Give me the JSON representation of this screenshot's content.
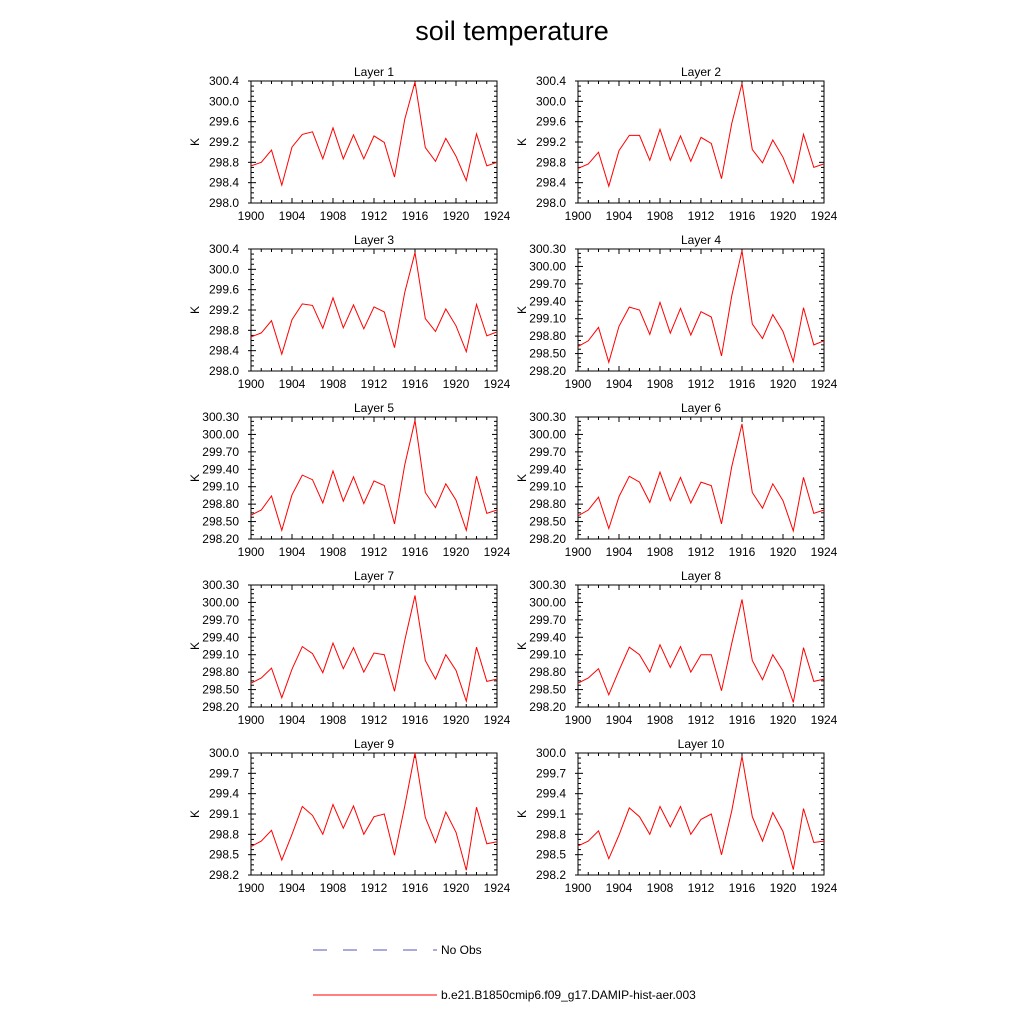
{
  "title": "soil temperature",
  "colors": {
    "model": "#ff0000",
    "obs": "#5555bb",
    "frame": "#000000"
  },
  "legend": [
    {
      "label": "No Obs",
      "style": "dashed",
      "color": "#5555bb"
    },
    {
      "label": "b.e21.B1850cmip6.f09_g17.DAMIP-hist-aer.003",
      "style": "solid",
      "color": "#ff0000"
    }
  ],
  "chart_data": [
    {
      "type": "line",
      "title": "Layer 1",
      "xlabel": "",
      "ylabel": "K",
      "xlim": [
        1900,
        1924
      ],
      "ylim": [
        298.0,
        300.4
      ],
      "xticks": [
        "1900",
        "1904",
        "1908",
        "1912",
        "1916",
        "1920",
        "1924"
      ],
      "yticks": [
        "298.0",
        "298.4",
        "298.8",
        "299.2",
        "299.6",
        "300.0",
        "300.4"
      ],
      "x": [
        1900,
        1901,
        1902,
        1903,
        1904,
        1905,
        1906,
        1907,
        1908,
        1909,
        1910,
        1911,
        1912,
        1913,
        1914,
        1915,
        1916,
        1917,
        1918,
        1919,
        1920,
        1921,
        1922,
        1923,
        1924
      ],
      "series": [
        {
          "name": "b.e21.B1850cmip6.f09_g17.DAMIP-hist-aer.003",
          "values": [
            298.73,
            298.8,
            299.04,
            298.35,
            299.1,
            299.35,
            299.4,
            298.87,
            299.48,
            298.87,
            299.34,
            298.87,
            299.32,
            299.19,
            298.51,
            299.65,
            300.38,
            299.09,
            298.82,
            299.27,
            298.92,
            298.44,
            299.36,
            298.73,
            298.8
          ]
        }
      ]
    },
    {
      "type": "line",
      "title": "Layer 2",
      "xlabel": "",
      "ylabel": "K",
      "xlim": [
        1900,
        1924
      ],
      "ylim": [
        298.0,
        300.4
      ],
      "xticks": [
        "1900",
        "1904",
        "1908",
        "1912",
        "1916",
        "1920",
        "1924"
      ],
      "yticks": [
        "298.0",
        "298.4",
        "298.8",
        "299.2",
        "299.6",
        "300.0",
        "300.4"
      ],
      "x": [
        1900,
        1901,
        1902,
        1903,
        1904,
        1905,
        1906,
        1907,
        1908,
        1909,
        1910,
        1911,
        1912,
        1913,
        1914,
        1915,
        1916,
        1917,
        1918,
        1919,
        1920,
        1921,
        1922,
        1923,
        1924
      ],
      "series": [
        {
          "name": "b.e21.B1850cmip6.f09_g17.DAMIP-hist-aer.003",
          "values": [
            298.68,
            298.77,
            299.0,
            298.33,
            299.03,
            299.33,
            299.33,
            298.84,
            299.45,
            298.84,
            299.32,
            298.82,
            299.29,
            299.17,
            298.48,
            299.57,
            300.35,
            299.05,
            298.79,
            299.24,
            298.9,
            298.4,
            299.35,
            298.7,
            298.77
          ]
        }
      ]
    },
    {
      "type": "line",
      "title": "Layer 3",
      "xlabel": "",
      "ylabel": "K",
      "xlim": [
        1900,
        1924
      ],
      "ylim": [
        298.0,
        300.4
      ],
      "xticks": [
        "1900",
        "1904",
        "1908",
        "1912",
        "1916",
        "1920",
        "1924"
      ],
      "yticks": [
        "298.0",
        "298.4",
        "298.8",
        "299.2",
        "299.6",
        "300.0",
        "300.4"
      ],
      "x": [
        1900,
        1901,
        1902,
        1903,
        1904,
        1905,
        1906,
        1907,
        1908,
        1909,
        1910,
        1911,
        1912,
        1913,
        1914,
        1915,
        1916,
        1917,
        1918,
        1919,
        1920,
        1921,
        1922,
        1923,
        1924
      ],
      "series": [
        {
          "name": "b.e21.B1850cmip6.f09_g17.DAMIP-hist-aer.003",
          "values": [
            298.67,
            298.75,
            298.99,
            298.33,
            299.01,
            299.32,
            299.29,
            298.84,
            299.44,
            298.85,
            299.3,
            298.83,
            299.26,
            299.16,
            298.46,
            299.55,
            300.33,
            299.03,
            298.78,
            299.22,
            298.89,
            298.38,
            299.31,
            298.69,
            298.77
          ]
        }
      ]
    },
    {
      "type": "line",
      "title": "Layer 4",
      "xlabel": "",
      "ylabel": "K",
      "xlim": [
        1900,
        1924
      ],
      "ylim": [
        298.2,
        300.3
      ],
      "xticks": [
        "1900",
        "1904",
        "1908",
        "1912",
        "1916",
        "1920",
        "1924"
      ],
      "yticks": [
        "298.20",
        "298.50",
        "298.80",
        "299.10",
        "299.40",
        "299.70",
        "300.00",
        "300.30"
      ],
      "x": [
        1900,
        1901,
        1902,
        1903,
        1904,
        1905,
        1906,
        1907,
        1908,
        1909,
        1910,
        1911,
        1912,
        1913,
        1914,
        1915,
        1916,
        1917,
        1918,
        1919,
        1920,
        1921,
        1922,
        1923,
        1924
      ],
      "series": [
        {
          "name": "b.e21.B1850cmip6.f09_g17.DAMIP-hist-aer.003",
          "values": [
            298.62,
            298.72,
            298.95,
            298.35,
            298.97,
            299.3,
            299.25,
            298.83,
            299.38,
            298.85,
            299.28,
            298.82,
            299.22,
            299.13,
            298.46,
            299.5,
            300.27,
            299.01,
            298.76,
            299.17,
            298.88,
            298.36,
            299.29,
            298.65,
            298.72
          ]
        }
      ]
    },
    {
      "type": "line",
      "title": "Layer 5",
      "xlabel": "",
      "ylabel": "K",
      "xlim": [
        1900,
        1924
      ],
      "ylim": [
        298.2,
        300.3
      ],
      "xticks": [
        "1900",
        "1904",
        "1908",
        "1912",
        "1916",
        "1920",
        "1924"
      ],
      "yticks": [
        "298.20",
        "298.50",
        "298.80",
        "299.10",
        "299.40",
        "299.70",
        "300.00",
        "300.30"
      ],
      "x": [
        1900,
        1901,
        1902,
        1903,
        1904,
        1905,
        1906,
        1907,
        1908,
        1909,
        1910,
        1911,
        1912,
        1913,
        1914,
        1915,
        1916,
        1917,
        1918,
        1919,
        1920,
        1921,
        1922,
        1923,
        1924
      ],
      "series": [
        {
          "name": "b.e21.B1850cmip6.f09_g17.DAMIP-hist-aer.003",
          "values": [
            298.61,
            298.7,
            298.94,
            298.35,
            298.96,
            299.3,
            299.22,
            298.82,
            299.37,
            298.85,
            299.27,
            298.81,
            299.2,
            299.12,
            298.46,
            299.48,
            300.24,
            299.0,
            298.74,
            299.15,
            298.87,
            298.35,
            299.28,
            298.64,
            298.7
          ]
        }
      ]
    },
    {
      "type": "line",
      "title": "Layer 6",
      "xlabel": "",
      "ylabel": "K",
      "xlim": [
        1900,
        1924
      ],
      "ylim": [
        298.2,
        300.3
      ],
      "xticks": [
        "1900",
        "1904",
        "1908",
        "1912",
        "1916",
        "1920",
        "1924"
      ],
      "yticks": [
        "298.20",
        "298.50",
        "298.80",
        "299.10",
        "299.40",
        "299.70",
        "300.00",
        "300.30"
      ],
      "x": [
        1900,
        1901,
        1902,
        1903,
        1904,
        1905,
        1906,
        1907,
        1908,
        1909,
        1910,
        1911,
        1912,
        1913,
        1914,
        1915,
        1916,
        1917,
        1918,
        1919,
        1920,
        1921,
        1922,
        1923,
        1924
      ],
      "series": [
        {
          "name": "b.e21.B1850cmip6.f09_g17.DAMIP-hist-aer.003",
          "values": [
            298.6,
            298.7,
            298.92,
            298.38,
            298.93,
            299.28,
            299.18,
            298.83,
            299.35,
            298.86,
            299.26,
            298.82,
            299.18,
            299.12,
            298.46,
            299.45,
            300.18,
            299.0,
            298.73,
            299.15,
            298.86,
            298.34,
            299.26,
            298.64,
            298.7
          ]
        }
      ]
    },
    {
      "type": "line",
      "title": "Layer 7",
      "xlabel": "",
      "ylabel": "K",
      "xlim": [
        1900,
        1924
      ],
      "ylim": [
        298.2,
        300.3
      ],
      "xticks": [
        "1900",
        "1904",
        "1908",
        "1912",
        "1916",
        "1920",
        "1924"
      ],
      "yticks": [
        "298.20",
        "298.50",
        "298.80",
        "299.10",
        "299.40",
        "299.70",
        "300.00",
        "300.30"
      ],
      "x": [
        1900,
        1901,
        1902,
        1903,
        1904,
        1905,
        1906,
        1907,
        1908,
        1909,
        1910,
        1911,
        1912,
        1913,
        1914,
        1915,
        1916,
        1917,
        1918,
        1919,
        1920,
        1921,
        1922,
        1923,
        1924
      ],
      "series": [
        {
          "name": "b.e21.B1850cmip6.f09_g17.DAMIP-hist-aer.003",
          "values": [
            298.61,
            298.7,
            298.87,
            298.36,
            298.85,
            299.24,
            299.12,
            298.79,
            299.3,
            298.86,
            299.22,
            298.8,
            299.13,
            299.1,
            298.47,
            299.35,
            300.12,
            299.0,
            298.68,
            299.1,
            298.83,
            298.3,
            299.23,
            298.64,
            298.68
          ]
        }
      ]
    },
    {
      "type": "line",
      "title": "Layer 8",
      "xlabel": "",
      "ylabel": "K",
      "xlim": [
        1900,
        1924
      ],
      "ylim": [
        298.2,
        300.3
      ],
      "xticks": [
        "1900",
        "1904",
        "1908",
        "1912",
        "1916",
        "1920",
        "1924"
      ],
      "yticks": [
        "298.20",
        "298.50",
        "298.80",
        "299.10",
        "299.40",
        "299.70",
        "300.00",
        "300.30"
      ],
      "x": [
        1900,
        1901,
        1902,
        1903,
        1904,
        1905,
        1906,
        1907,
        1908,
        1909,
        1910,
        1911,
        1912,
        1913,
        1914,
        1915,
        1916,
        1917,
        1918,
        1919,
        1920,
        1921,
        1922,
        1923,
        1924
      ],
      "series": [
        {
          "name": "b.e21.B1850cmip6.f09_g17.DAMIP-hist-aer.003",
          "values": [
            298.61,
            298.7,
            298.86,
            298.41,
            298.83,
            299.23,
            299.1,
            298.8,
            299.27,
            298.88,
            299.24,
            298.8,
            299.1,
            299.1,
            298.48,
            299.3,
            300.05,
            299.0,
            298.67,
            299.1,
            298.82,
            298.28,
            299.22,
            298.64,
            298.68
          ]
        }
      ]
    },
    {
      "type": "line",
      "title": "Layer 9",
      "xlabel": "",
      "ylabel": "K",
      "xlim": [
        1900,
        1924
      ],
      "ylim": [
        298.2,
        300.0
      ],
      "xticks": [
        "1900",
        "1904",
        "1908",
        "1912",
        "1916",
        "1920",
        "1924"
      ],
      "yticks": [
        "298.2",
        "298.5",
        "298.8",
        "299.1",
        "299.4",
        "299.7",
        "300.0"
      ],
      "x": [
        1900,
        1901,
        1902,
        1903,
        1904,
        1905,
        1906,
        1907,
        1908,
        1909,
        1910,
        1911,
        1912,
        1913,
        1914,
        1915,
        1916,
        1917,
        1918,
        1919,
        1920,
        1921,
        1922,
        1923,
        1924
      ],
      "series": [
        {
          "name": "b.e21.B1850cmip6.f09_g17.DAMIP-hist-aer.003",
          "values": [
            298.62,
            298.7,
            298.86,
            298.42,
            298.8,
            299.21,
            299.08,
            298.8,
            299.24,
            298.89,
            299.22,
            298.8,
            299.06,
            299.1,
            298.49,
            299.22,
            300.0,
            299.05,
            298.68,
            299.13,
            298.83,
            298.27,
            299.2,
            298.66,
            298.69
          ]
        }
      ]
    },
    {
      "type": "line",
      "title": "Layer 10",
      "xlabel": "",
      "ylabel": "K",
      "xlim": [
        1900,
        1924
      ],
      "ylim": [
        298.2,
        300.0
      ],
      "xticks": [
        "1900",
        "1904",
        "1908",
        "1912",
        "1916",
        "1920",
        "1924"
      ],
      "yticks": [
        "298.2",
        "298.5",
        "298.8",
        "299.1",
        "299.4",
        "299.7",
        "300.0"
      ],
      "x": [
        1900,
        1901,
        1902,
        1903,
        1904,
        1905,
        1906,
        1907,
        1908,
        1909,
        1910,
        1911,
        1912,
        1913,
        1914,
        1915,
        1916,
        1917,
        1918,
        1919,
        1920,
        1921,
        1922,
        1923,
        1924
      ],
      "series": [
        {
          "name": "b.e21.B1850cmip6.f09_g17.DAMIP-hist-aer.003",
          "values": [
            298.63,
            298.7,
            298.85,
            298.44,
            298.79,
            299.19,
            299.06,
            298.8,
            299.21,
            298.91,
            299.21,
            298.8,
            299.02,
            299.1,
            298.5,
            299.15,
            299.95,
            299.06,
            298.7,
            299.12,
            298.84,
            298.28,
            299.18,
            298.68,
            298.7
          ]
        }
      ]
    }
  ]
}
